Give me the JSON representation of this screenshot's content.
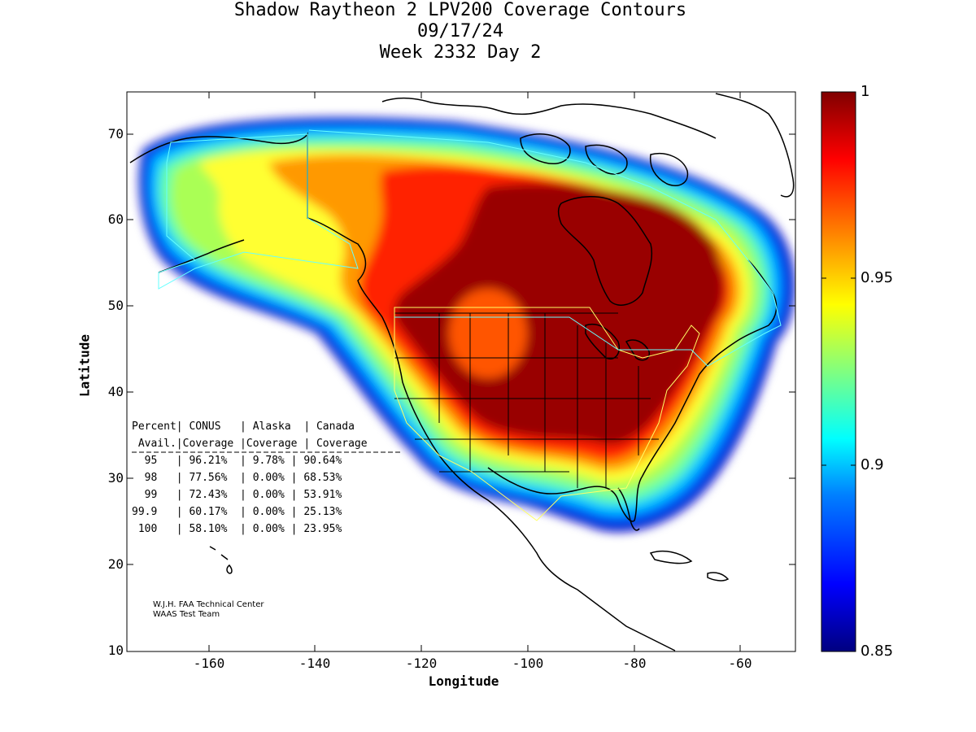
{
  "header": {
    "title_line1": "Shadow Raytheon 2 LPV200 Coverage Contours",
    "title_line2": "09/17/24",
    "title_line3": "Week 2332 Day 2"
  },
  "axes": {
    "xlabel": "Longitude",
    "ylabel": "Latitude",
    "xticks": [
      "-160",
      "-140",
      "-120",
      "-100",
      "-80",
      "-60"
    ],
    "yticks": [
      "70",
      "60",
      "50",
      "40",
      "30",
      "20",
      "10"
    ]
  },
  "colorbar": {
    "ticks": [
      "1",
      "0.95",
      "0.9",
      "0.85"
    ],
    "stops": [
      "#000080",
      "#0000ff",
      "#0080ff",
      "#00ffff",
      "#80ff80",
      "#ffff00",
      "#ff8000",
      "#ff0000",
      "#800000"
    ]
  },
  "table": {
    "header1": "Percent| CONUS   | Alaska  | Canada",
    "header2": " Avail.|Coverage |Coverage | Coverage",
    "rows": [
      "  95   | 96.21%  | 9.78% | 90.64%",
      "  98   | 77.56%  | 0.00% | 68.53%",
      "  99   | 72.43%  | 0.00% | 53.91%",
      "99.9   | 60.17%  | 0.00% | 25.13%",
      " 100   | 58.10%  | 0.00% | 23.95%"
    ]
  },
  "credit": {
    "line1": "W.J.H. FAA Technical Center",
    "line2": "WAAS Test Team"
  }
}
